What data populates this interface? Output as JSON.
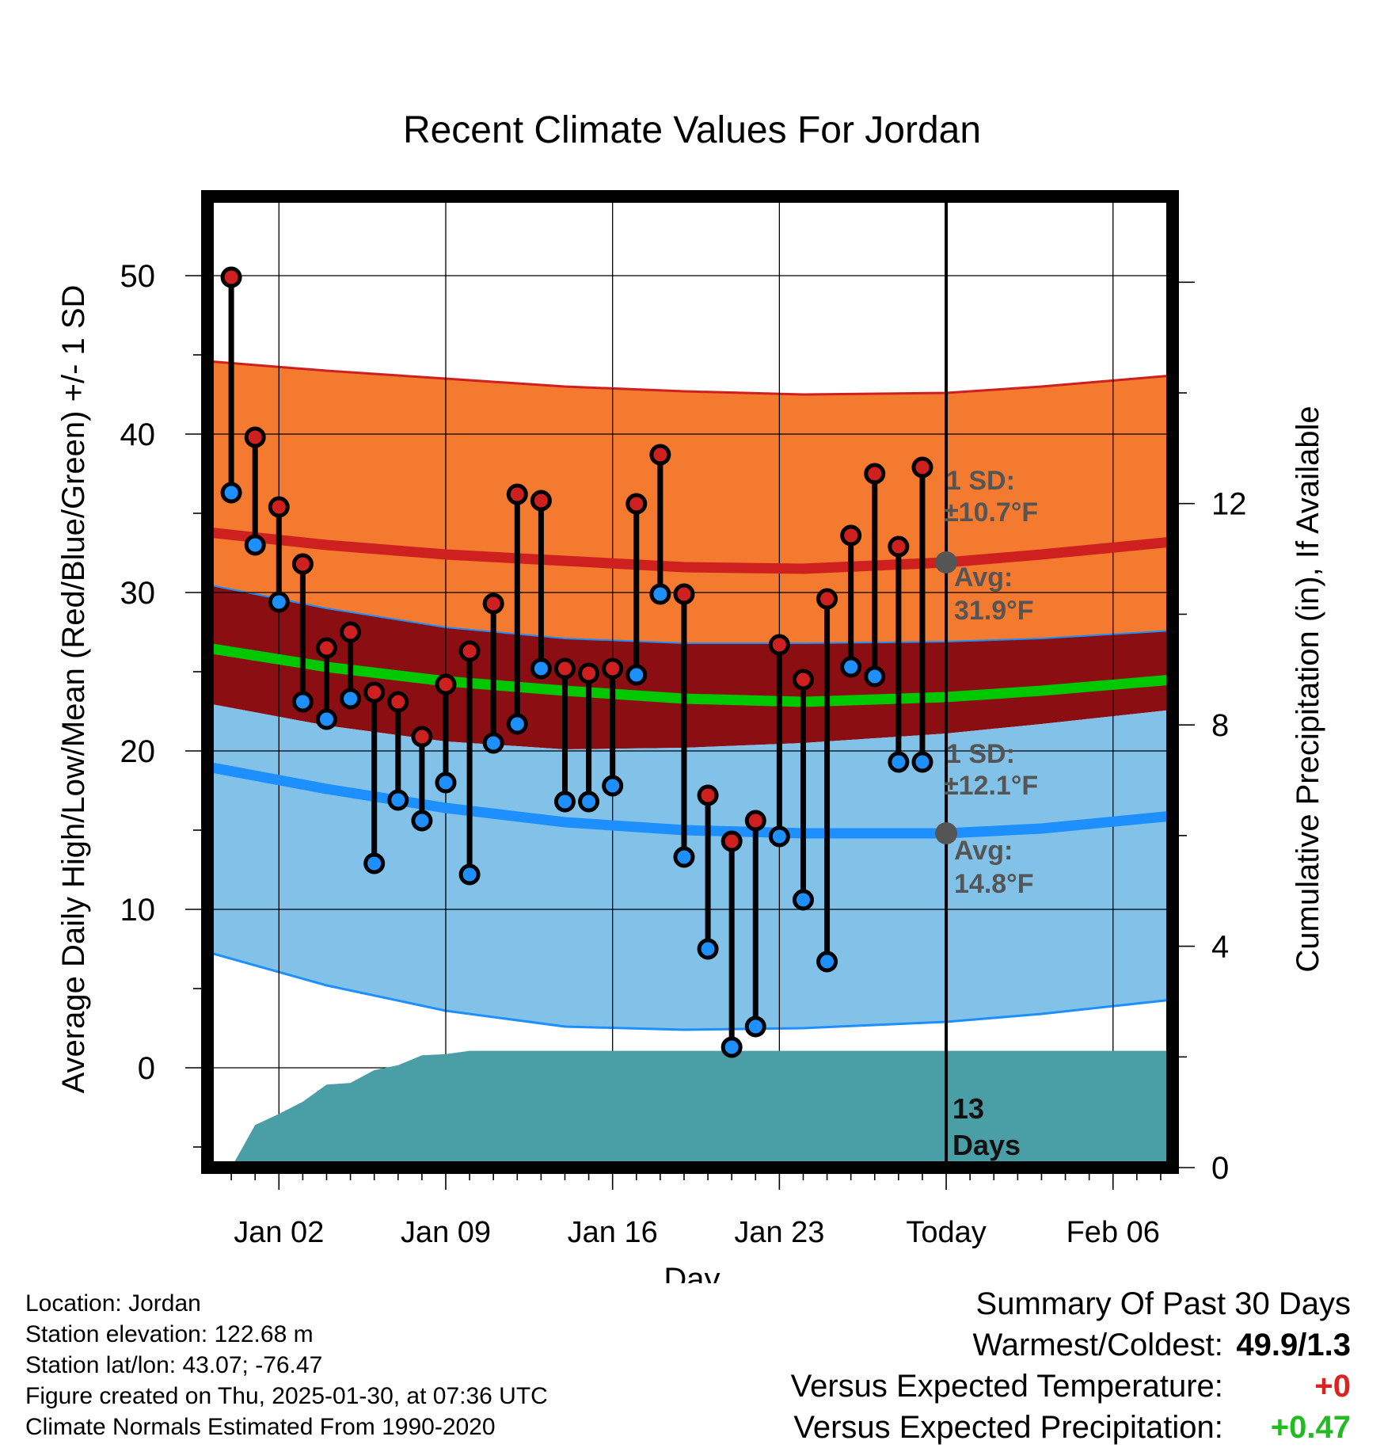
{
  "chart_data": {
    "type": "line",
    "title": "Recent Climate Values For Jordan",
    "xlabel": "Day",
    "ylabel_left": "Average Daily High/Low/Mean (Red/Blue/Green) +/- 1 SD",
    "ylabel_right": "Cumulative Precipitation (in), If Available",
    "ylim": [
      -6.3,
      55
    ],
    "y_ticks": [
      0,
      10,
      20,
      30,
      40,
      50
    ],
    "y2lim": [
      0,
      17.55
    ],
    "y2_ticks": [
      0,
      4,
      8,
      12
    ],
    "x_range": [
      0,
      40.5
    ],
    "x_ticks": [
      {
        "x": 3,
        "label": "Jan 02"
      },
      {
        "x": 10,
        "label": "Jan 09"
      },
      {
        "x": 17,
        "label": "Jan 16"
      },
      {
        "x": 24,
        "label": "Jan 23"
      },
      {
        "x": 31,
        "label": "Today"
      },
      {
        "x": 38,
        "label": "Feb 06"
      }
    ],
    "today_x": 31,
    "days_x": [
      1,
      2,
      3,
      4,
      5,
      6,
      7,
      8,
      9,
      10,
      11,
      12,
      13,
      14,
      15,
      16,
      17,
      18,
      19,
      20,
      21,
      22,
      23,
      24,
      25,
      26,
      27,
      28,
      29,
      30
    ],
    "highs": [
      49.9,
      39.8,
      35.4,
      31.8,
      26.5,
      27.5,
      23.7,
      23.1,
      20.9,
      24.2,
      26.3,
      29.3,
      36.2,
      35.8,
      25.2,
      24.9,
      25.2,
      35.6,
      38.7,
      29.9,
      17.2,
      14.3,
      15.6,
      26.7,
      24.5,
      29.6,
      33.6,
      37.5,
      32.9,
      37.9
    ],
    "lows": [
      36.3,
      33.0,
      29.4,
      23.1,
      22.0,
      23.3,
      12.9,
      16.9,
      15.6,
      18.0,
      12.2,
      20.5,
      21.7,
      25.2,
      16.8,
      16.8,
      17.8,
      24.8,
      29.9,
      13.3,
      7.5,
      1.3,
      2.6,
      14.6,
      10.6,
      6.7,
      25.3,
      24.7,
      19.3,
      19.3
    ],
    "normals": {
      "x": [
        0,
        5,
        10,
        15,
        20,
        25,
        31,
        35,
        40.5
      ],
      "high_avg": [
        33.8,
        33.0,
        32.4,
        32.0,
        31.6,
        31.5,
        31.9,
        32.4,
        33.2
      ],
      "high_sd_upper": [
        44.6,
        44.0,
        43.5,
        43.0,
        42.7,
        42.5,
        42.6,
        43.0,
        43.7
      ],
      "low_avg": [
        19.0,
        17.6,
        16.4,
        15.5,
        15.0,
        14.8,
        14.8,
        15.1,
        15.9
      ],
      "low_sd_upper": [
        30.5,
        29.0,
        27.8,
        27.1,
        26.8,
        26.8,
        26.9,
        27.1,
        27.6
      ],
      "low_sd_lower": [
        7.3,
        5.2,
        3.6,
        2.6,
        2.4,
        2.5,
        2.9,
        3.4,
        4.3
      ],
      "high_sd_lower": [
        23.0,
        21.6,
        20.6,
        20.1,
        20.2,
        20.5,
        21.1,
        21.7,
        22.6
      ],
      "mean": [
        26.5,
        25.3,
        24.4,
        23.8,
        23.3,
        23.1,
        23.4,
        23.8,
        24.5
      ]
    },
    "precip_cumulative": {
      "x": [
        1,
        2,
        3,
        4,
        5,
        6,
        7,
        8,
        9,
        10,
        11,
        12,
        40.5
      ],
      "values": [
        0,
        0.77,
        0.97,
        1.19,
        1.5,
        1.53,
        1.76,
        1.85,
        2.03,
        2.05,
        2.11,
        2.11,
        2.11
      ]
    },
    "annotations": {
      "high_sd_label": "1 SD:",
      "high_sd_value": "±10.7°F",
      "high_avg_label": "Avg:",
      "high_avg_value": "31.9°F",
      "low_sd_label": "1 SD:",
      "low_sd_value": "±12.1°F",
      "low_avg_label": "Avg:",
      "low_avg_value": "14.8°F",
      "precip_days_count": "13",
      "precip_days_unit": "Days"
    },
    "colors": {
      "high": "#cf2020",
      "high_band": "#f47a30",
      "mid_band": "#8b0e12",
      "low_band": "#82c2e8",
      "low": "#1e8fff",
      "mean": "#00c800",
      "precip": "#4a9ea6"
    }
  },
  "info": {
    "location": "Location: Jordan",
    "elevation": "Station elevation: 122.68 m",
    "latlon": "Station lat/lon: 43.07; -76.47",
    "created": "Figure created on Thu, 2025-01-30, at 07:36 UTC",
    "normals": "Climate Normals Estimated From 1990-2020"
  },
  "summary": {
    "title": "Summary Of Past 30 Days",
    "warm_cold_label": "Warmest/Coldest:",
    "warm_cold_value": "49.9/1.3",
    "temp_label": "Versus Expected Temperature:",
    "temp_value": "+0",
    "precip_label": "Versus Expected Precipitation:",
    "precip_value": "+0.47",
    "temp_color": "#dd2020",
    "precip_color": "#22bb22"
  }
}
